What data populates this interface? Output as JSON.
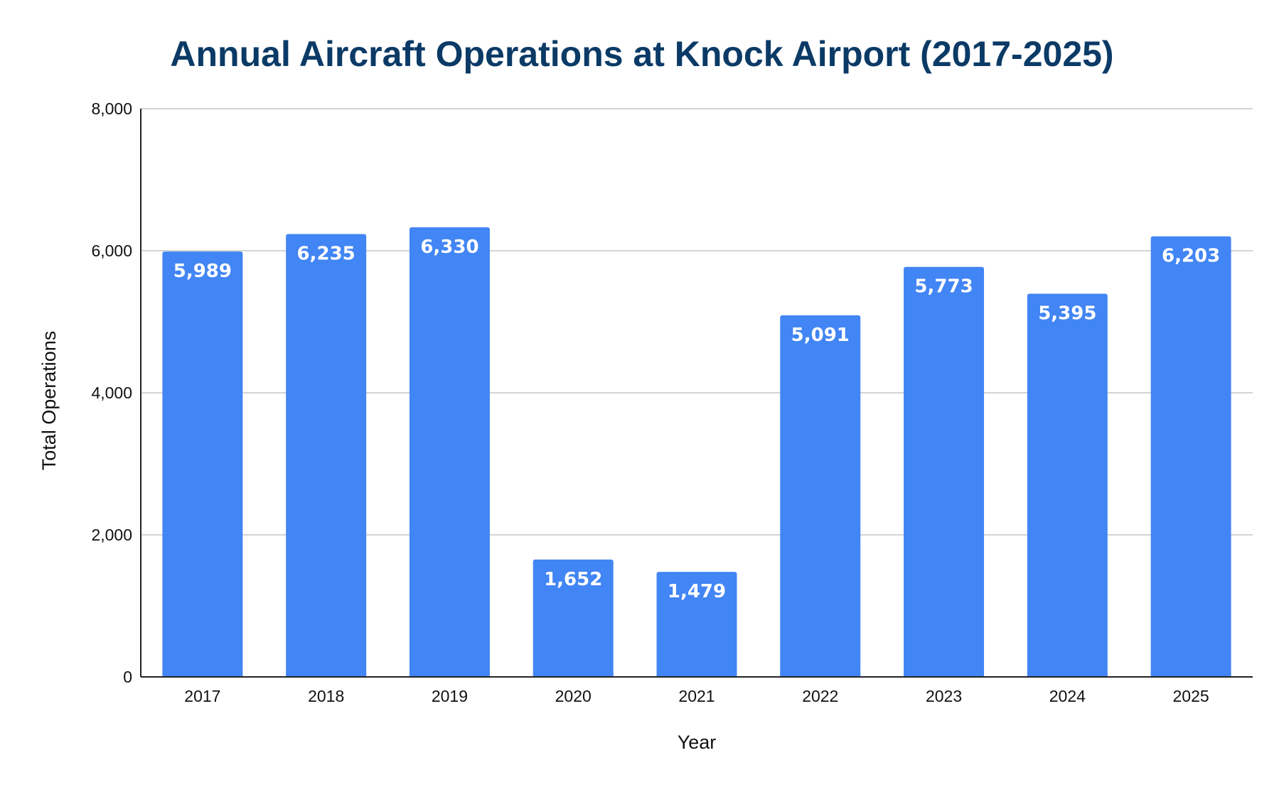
{
  "chart_data": {
    "type": "bar",
    "title": "Annual Aircraft Operations at Knock Airport (2017-2025)",
    "xlabel": "Year",
    "ylabel": "Total Operations",
    "categories": [
      "2017",
      "2018",
      "2019",
      "2020",
      "2021",
      "2022",
      "2023",
      "2024",
      "2025"
    ],
    "values": [
      5989,
      6235,
      6330,
      1652,
      1479,
      5091,
      5773,
      5395,
      6203
    ],
    "data_labels": [
      "5,989",
      "6,235",
      "6,330",
      "1,652",
      "1,479",
      "5,091",
      "5,773",
      "5,395",
      "6,203"
    ],
    "ylim": [
      0,
      8000
    ],
    "yticks": [
      0,
      2000,
      4000,
      6000,
      8000
    ],
    "ytick_labels": [
      "0",
      "2,000",
      "4,000",
      "6,000",
      "8,000"
    ],
    "grid": true,
    "legend": "none",
    "bar_color": "#4285f4"
  }
}
